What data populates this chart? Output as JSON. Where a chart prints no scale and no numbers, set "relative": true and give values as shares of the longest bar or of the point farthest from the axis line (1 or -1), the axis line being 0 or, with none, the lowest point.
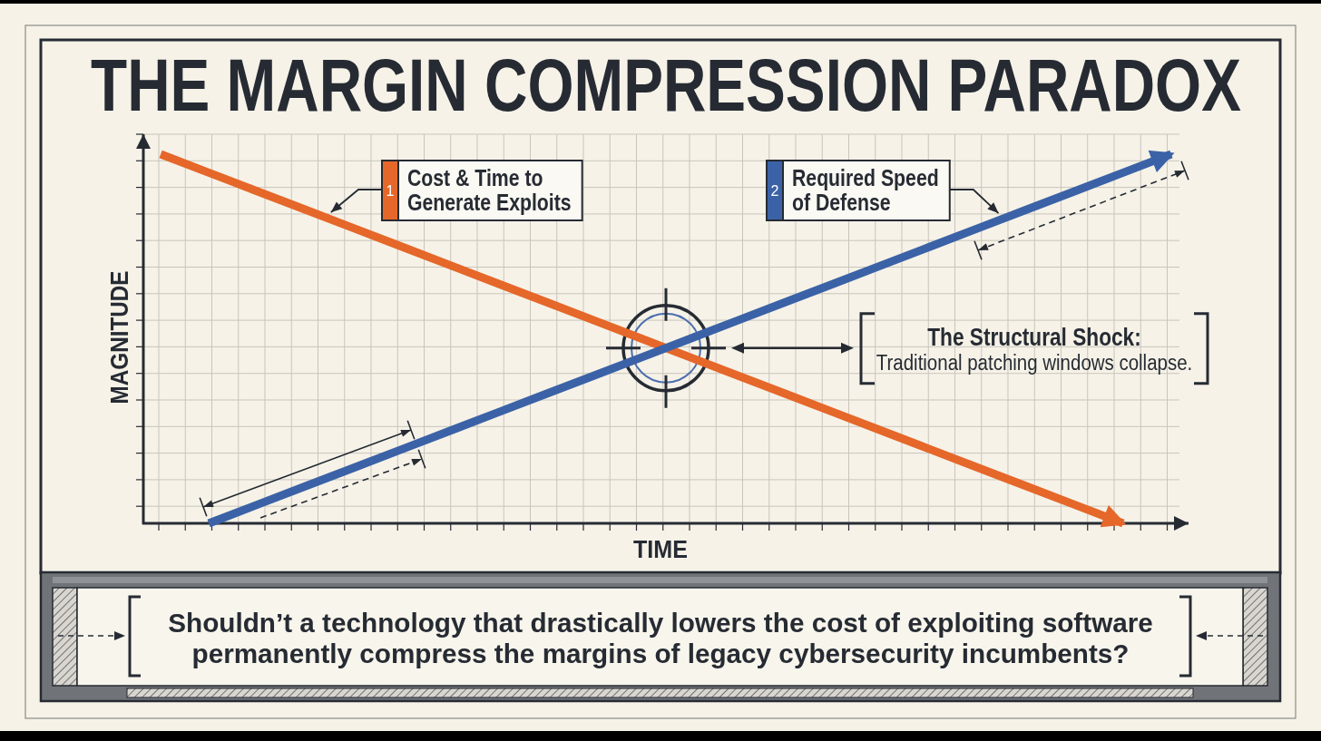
{
  "chart_data": {
    "type": "line",
    "title": "THE MARGIN COMPRESSION PARADOX",
    "xlabel": "TIME",
    "ylabel": "MAGNITUDE",
    "relative": true,
    "categories": [
      null,
      null,
      null,
      null,
      null,
      null,
      null,
      null,
      null,
      null,
      null,
      null,
      null,
      null,
      null,
      null,
      null,
      null,
      null,
      null,
      null,
      null
    ],
    "series": [
      {
        "name": "Cost & Time to Generate Exploits",
        "color": "#e5672a",
        "values": [
          1,
          0.95,
          0.9,
          0.85,
          0.8,
          0.75,
          0.7,
          0.65,
          0.6,
          0.55,
          0.5,
          0.45,
          0.4,
          0.35,
          0.3,
          0.25,
          0.2,
          0.15,
          0.1,
          0.05,
          0,
          null
        ]
      },
      {
        "name": "Required Speed of Defense",
        "color": "#3b62a6",
        "values": [
          null,
          0,
          0.05,
          0.1,
          0.15,
          0.2,
          0.25,
          0.3,
          0.35,
          0.4,
          0.45,
          0.5,
          0.55,
          0.6,
          0.65,
          0.7,
          0.75,
          0.8,
          0.85,
          0.9,
          0.95,
          1
        ]
      }
    ],
    "grid": true,
    "legend": "top",
    "annotations": [
      "1",
      "2",
      "The Structural Shock:",
      "Traditional patching windows collapse.",
      "Shouldn’t a technology that drastically lowers the cost of exploiting software permanently compress the margins of legacy cybersecurity incumbents?"
    ]
  }
}
